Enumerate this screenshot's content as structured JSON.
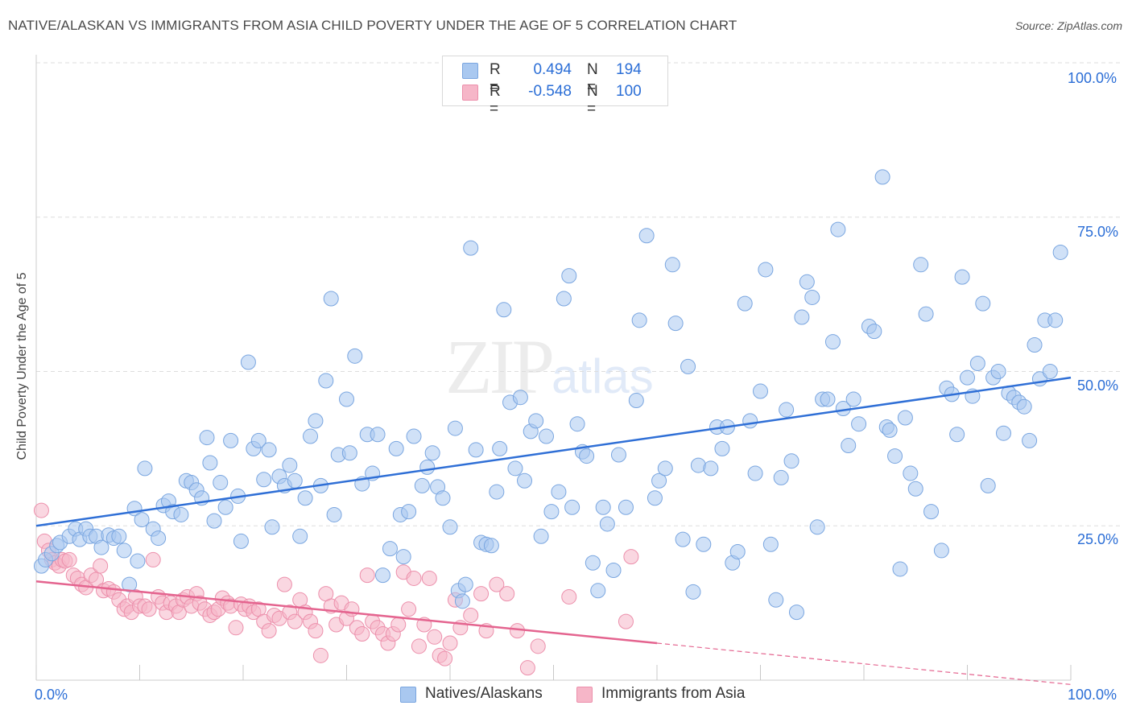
{
  "header": {
    "title": "NATIVE/ALASKAN VS IMMIGRANTS FROM ASIA CHILD POVERTY UNDER THE AGE OF 5 CORRELATION CHART",
    "source": "Source: ZipAtlas.com"
  },
  "watermark": {
    "zip": "ZIP",
    "atlas": "atlas"
  },
  "stats": [
    {
      "r_label": "R =",
      "r_value": "0.494",
      "n_label": "N =",
      "n_value": "194",
      "color": "#a9c8f0"
    },
    {
      "r_label": "R =",
      "r_value": "-0.548",
      "n_label": "N =",
      "n_value": "100",
      "color": "#f6b6c8"
    }
  ],
  "colors": {
    "blue_fill": "#a9c8f0",
    "blue_stroke": "#7aa6e0",
    "blue_line": "#2f6fd6",
    "pink_fill": "#f6b6c8",
    "pink_stroke": "#ec8fab",
    "pink_line": "#e4648f",
    "tick_text": "#2b6ed6",
    "grid": "#dddddd"
  },
  "chart_data": {
    "type": "scatter",
    "title": "NATIVE/ALASKAN VS IMMIGRANTS FROM ASIA CHILD POVERTY UNDER THE AGE OF 5 CORRELATION CHART",
    "xlabel": "",
    "ylabel": "Child Poverty Under the Age of 5",
    "x_tick_labels": [
      "0.0%",
      "100.0%"
    ],
    "y_tick_labels": [
      "25.0%",
      "50.0%",
      "75.0%",
      "100.0%"
    ],
    "xlim": [
      0,
      100
    ],
    "ylim": [
      0,
      100
    ],
    "grid": "horizontal dashed",
    "legend": "bottom-center",
    "series": [
      {
        "name": "Natives/Alaskans",
        "trend": {
          "x": [
            0,
            100
          ],
          "y": [
            25.0,
            49.0
          ]
        },
        "points": [
          [
            0.5,
            18.5
          ],
          [
            0.9,
            19.5
          ],
          [
            1.5,
            20.5
          ],
          [
            2.0,
            21.8
          ],
          [
            2.3,
            22.3
          ],
          [
            3.2,
            23.3
          ],
          [
            3.8,
            24.5
          ],
          [
            4.2,
            22.8
          ],
          [
            4.8,
            24.5
          ],
          [
            5.2,
            23.3
          ],
          [
            5.8,
            23.3
          ],
          [
            6.3,
            21.5
          ],
          [
            7.0,
            23.5
          ],
          [
            7.5,
            23.0
          ],
          [
            8.0,
            23.3
          ],
          [
            8.5,
            21.0
          ],
          [
            9.0,
            15.5
          ],
          [
            9.5,
            27.8
          ],
          [
            9.8,
            19.3
          ],
          [
            10.2,
            26.0
          ],
          [
            10.5,
            34.3
          ],
          [
            11.3,
            24.5
          ],
          [
            11.8,
            23.0
          ],
          [
            12.3,
            28.3
          ],
          [
            12.8,
            29.0
          ],
          [
            13.2,
            27.3
          ],
          [
            14.0,
            26.8
          ],
          [
            14.5,
            32.3
          ],
          [
            15.0,
            32.0
          ],
          [
            15.5,
            30.8
          ],
          [
            16.0,
            29.5
          ],
          [
            16.5,
            39.3
          ],
          [
            16.8,
            35.2
          ],
          [
            17.2,
            25.8
          ],
          [
            17.8,
            32.0
          ],
          [
            18.3,
            28.0
          ],
          [
            18.8,
            38.8
          ],
          [
            19.5,
            29.8
          ],
          [
            19.8,
            22.5
          ],
          [
            20.5,
            51.5
          ],
          [
            21.0,
            37.5
          ],
          [
            21.5,
            38.8
          ],
          [
            22.0,
            32.5
          ],
          [
            22.5,
            37.3
          ],
          [
            22.8,
            24.8
          ],
          [
            23.5,
            33.0
          ],
          [
            24.0,
            31.5
          ],
          [
            24.5,
            34.8
          ],
          [
            25.0,
            32.3
          ],
          [
            25.5,
            23.3
          ],
          [
            26.0,
            29.5
          ],
          [
            26.5,
            39.5
          ],
          [
            27.0,
            42.0
          ],
          [
            27.5,
            31.5
          ],
          [
            28.0,
            48.5
          ],
          [
            28.5,
            61.8
          ],
          [
            28.8,
            26.8
          ],
          [
            29.2,
            36.5
          ],
          [
            30.0,
            45.5
          ],
          [
            30.3,
            36.8
          ],
          [
            30.8,
            52.5
          ],
          [
            31.5,
            31.8
          ],
          [
            32.0,
            39.8
          ],
          [
            32.5,
            33.5
          ],
          [
            33.0,
            39.8
          ],
          [
            33.5,
            17.0
          ],
          [
            34.2,
            21.3
          ],
          [
            34.8,
            37.5
          ],
          [
            35.2,
            26.8
          ],
          [
            35.5,
            20.0
          ],
          [
            36.0,
            27.3
          ],
          [
            36.5,
            39.5
          ],
          [
            37.3,
            31.5
          ],
          [
            37.8,
            34.5
          ],
          [
            38.3,
            36.8
          ],
          [
            38.8,
            31.3
          ],
          [
            39.3,
            29.5
          ],
          [
            40.0,
            24.8
          ],
          [
            40.5,
            40.8
          ],
          [
            40.8,
            14.5
          ],
          [
            41.2,
            12.8
          ],
          [
            41.5,
            15.5
          ],
          [
            42.0,
            70.0
          ],
          [
            42.5,
            37.3
          ],
          [
            43.0,
            22.3
          ],
          [
            43.5,
            22.0
          ],
          [
            44.0,
            21.8
          ],
          [
            44.5,
            30.5
          ],
          [
            44.8,
            37.5
          ],
          [
            45.2,
            60.0
          ],
          [
            45.8,
            45.0
          ],
          [
            46.3,
            34.3
          ],
          [
            46.8,
            45.8
          ],
          [
            47.2,
            32.3
          ],
          [
            47.8,
            40.3
          ],
          [
            48.3,
            42.0
          ],
          [
            48.8,
            23.3
          ],
          [
            49.3,
            39.5
          ],
          [
            49.8,
            27.3
          ],
          [
            50.5,
            30.5
          ],
          [
            51.0,
            61.8
          ],
          [
            51.5,
            65.5
          ],
          [
            51.8,
            28.0
          ],
          [
            52.3,
            41.5
          ],
          [
            52.8,
            37.0
          ],
          [
            53.2,
            36.3
          ],
          [
            53.8,
            19.0
          ],
          [
            54.3,
            14.5
          ],
          [
            54.8,
            28.0
          ],
          [
            55.2,
            25.3
          ],
          [
            55.8,
            17.8
          ],
          [
            56.3,
            36.5
          ],
          [
            57.0,
            28.0
          ],
          [
            58.0,
            45.3
          ],
          [
            58.3,
            58.3
          ],
          [
            59.0,
            72.0
          ],
          [
            59.8,
            29.5
          ],
          [
            60.2,
            32.3
          ],
          [
            60.8,
            34.3
          ],
          [
            61.5,
            67.3
          ],
          [
            61.8,
            57.8
          ],
          [
            62.5,
            22.8
          ],
          [
            63.0,
            50.8
          ],
          [
            63.5,
            14.3
          ],
          [
            64.0,
            34.8
          ],
          [
            64.5,
            22.0
          ],
          [
            65.2,
            34.3
          ],
          [
            65.8,
            41.0
          ],
          [
            66.3,
            37.5
          ],
          [
            66.8,
            41.0
          ],
          [
            67.3,
            19.0
          ],
          [
            67.8,
            20.8
          ],
          [
            68.5,
            61.0
          ],
          [
            69.0,
            42.0
          ],
          [
            69.5,
            33.5
          ],
          [
            70.0,
            46.8
          ],
          [
            70.5,
            66.5
          ],
          [
            71.0,
            22.0
          ],
          [
            71.5,
            13.0
          ],
          [
            72.0,
            32.8
          ],
          [
            72.5,
            43.8
          ],
          [
            73.0,
            35.5
          ],
          [
            73.5,
            11.0
          ],
          [
            74.0,
            58.8
          ],
          [
            74.5,
            64.5
          ],
          [
            75.0,
            62.0
          ],
          [
            75.5,
            24.8
          ],
          [
            76.0,
            45.5
          ],
          [
            76.5,
            45.5
          ],
          [
            77.0,
            54.8
          ],
          [
            77.5,
            73.0
          ],
          [
            78.0,
            44.0
          ],
          [
            78.5,
            38.0
          ],
          [
            79.0,
            45.5
          ],
          [
            79.5,
            41.5
          ],
          [
            80.5,
            57.3
          ],
          [
            81.0,
            56.5
          ],
          [
            81.8,
            81.5
          ],
          [
            82.2,
            41.0
          ],
          [
            82.5,
            40.5
          ],
          [
            83.0,
            36.3
          ],
          [
            83.5,
            18.0
          ],
          [
            84.0,
            42.5
          ],
          [
            84.5,
            33.5
          ],
          [
            85.0,
            31.0
          ],
          [
            85.5,
            67.3
          ],
          [
            86.0,
            59.3
          ],
          [
            86.5,
            27.3
          ],
          [
            87.5,
            21.0
          ],
          [
            88.0,
            47.3
          ],
          [
            88.5,
            46.3
          ],
          [
            89.0,
            39.8
          ],
          [
            89.5,
            65.3
          ],
          [
            90.0,
            49.0
          ],
          [
            90.5,
            46.0
          ],
          [
            91.0,
            51.3
          ],
          [
            91.5,
            61.0
          ],
          [
            92.0,
            31.5
          ],
          [
            92.5,
            49.0
          ],
          [
            93.0,
            50.0
          ],
          [
            93.5,
            40.0
          ],
          [
            94.0,
            46.5
          ],
          [
            94.5,
            45.8
          ],
          [
            95.0,
            45.0
          ],
          [
            95.5,
            44.3
          ],
          [
            96.0,
            38.8
          ],
          [
            96.5,
            54.3
          ],
          [
            97.0,
            48.8
          ],
          [
            97.5,
            58.3
          ],
          [
            98.0,
            50.0
          ],
          [
            98.5,
            58.3
          ],
          [
            99.0,
            69.3
          ]
        ]
      },
      {
        "name": "Immigrants from Asia",
        "trend": {
          "x": [
            0,
            60
          ],
          "y": [
            16.0,
            6.0
          ]
        },
        "trend_extension": {
          "x": [
            60,
            100
          ],
          "y": [
            6.0,
            -0.7
          ]
        },
        "points": [
          [
            0.5,
            27.5
          ],
          [
            0.8,
            22.5
          ],
          [
            1.2,
            21.0
          ],
          [
            1.5,
            19.5
          ],
          [
            1.8,
            19.0
          ],
          [
            2.2,
            18.5
          ],
          [
            2.5,
            19.5
          ],
          [
            2.8,
            19.3
          ],
          [
            3.2,
            19.5
          ],
          [
            3.6,
            17.0
          ],
          [
            4.0,
            16.5
          ],
          [
            4.4,
            15.5
          ],
          [
            4.8,
            15.0
          ],
          [
            5.3,
            17.0
          ],
          [
            5.8,
            16.3
          ],
          [
            6.2,
            18.5
          ],
          [
            6.5,
            14.5
          ],
          [
            7.0,
            14.8
          ],
          [
            7.5,
            14.3
          ],
          [
            8.0,
            13.0
          ],
          [
            8.5,
            11.5
          ],
          [
            8.8,
            12.0
          ],
          [
            9.2,
            11.0
          ],
          [
            9.6,
            13.5
          ],
          [
            10.0,
            12.0
          ],
          [
            10.5,
            12.0
          ],
          [
            10.9,
            11.5
          ],
          [
            11.3,
            19.5
          ],
          [
            11.8,
            13.5
          ],
          [
            12.2,
            12.5
          ],
          [
            12.6,
            11.0
          ],
          [
            13.0,
            12.5
          ],
          [
            13.5,
            12.0
          ],
          [
            13.8,
            11.0
          ],
          [
            14.2,
            13.0
          ],
          [
            14.6,
            13.5
          ],
          [
            15.0,
            12.0
          ],
          [
            15.5,
            14.0
          ],
          [
            15.8,
            12.5
          ],
          [
            16.3,
            11.5
          ],
          [
            16.8,
            10.5
          ],
          [
            17.2,
            11.0
          ],
          [
            17.6,
            11.5
          ],
          [
            18.0,
            13.3
          ],
          [
            18.5,
            12.5
          ],
          [
            18.8,
            12.0
          ],
          [
            19.3,
            8.5
          ],
          [
            19.8,
            12.3
          ],
          [
            20.2,
            11.5
          ],
          [
            20.6,
            12.0
          ],
          [
            21.0,
            11.0
          ],
          [
            21.5,
            11.5
          ],
          [
            22.0,
            9.5
          ],
          [
            22.5,
            8.0
          ],
          [
            23.0,
            10.5
          ],
          [
            23.5,
            10.0
          ],
          [
            24.0,
            15.5
          ],
          [
            24.5,
            11.0
          ],
          [
            25.0,
            9.5
          ],
          [
            25.5,
            13.0
          ],
          [
            26.0,
            11.0
          ],
          [
            26.5,
            9.5
          ],
          [
            27.0,
            8.0
          ],
          [
            27.5,
            4.0
          ],
          [
            28.0,
            14.0
          ],
          [
            28.5,
            12.0
          ],
          [
            29.0,
            9.0
          ],
          [
            29.5,
            12.5
          ],
          [
            30.0,
            10.0
          ],
          [
            30.5,
            11.5
          ],
          [
            31.0,
            8.5
          ],
          [
            31.5,
            7.5
          ],
          [
            32.0,
            17.0
          ],
          [
            32.5,
            9.5
          ],
          [
            33.0,
            8.5
          ],
          [
            33.5,
            7.5
          ],
          [
            34.0,
            6.0
          ],
          [
            34.5,
            7.5
          ],
          [
            35.0,
            9.0
          ],
          [
            35.5,
            17.5
          ],
          [
            36.0,
            11.5
          ],
          [
            36.5,
            16.5
          ],
          [
            37.0,
            5.5
          ],
          [
            37.5,
            9.0
          ],
          [
            38.0,
            16.5
          ],
          [
            38.5,
            7.0
          ],
          [
            39.0,
            4.0
          ],
          [
            39.5,
            3.5
          ],
          [
            40.0,
            6.0
          ],
          [
            40.5,
            13.0
          ],
          [
            41.0,
            8.5
          ],
          [
            42.0,
            10.5
          ],
          [
            43.0,
            14.0
          ],
          [
            43.5,
            8.0
          ],
          [
            44.5,
            15.5
          ],
          [
            45.5,
            14.0
          ],
          [
            46.5,
            8.0
          ],
          [
            47.5,
            2.0
          ],
          [
            48.5,
            5.5
          ],
          [
            51.5,
            13.5
          ],
          [
            57.5,
            20.0
          ],
          [
            57.0,
            9.5
          ]
        ]
      }
    ]
  },
  "legend": {
    "items": [
      {
        "label": "Natives/Alaskans"
      },
      {
        "label": "Immigrants from Asia"
      }
    ]
  }
}
